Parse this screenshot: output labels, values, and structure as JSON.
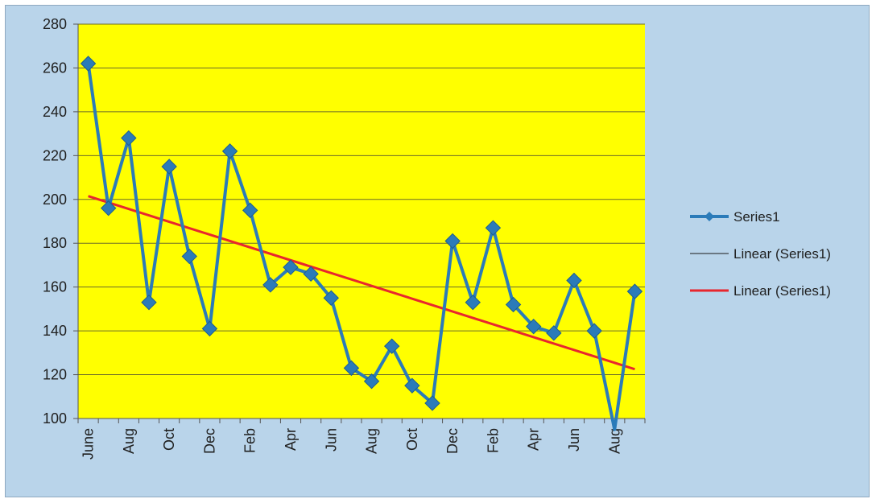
{
  "chart_data": {
    "type": "line",
    "title": "",
    "xlabel": "",
    "ylabel": "",
    "ylim": [
      100,
      280
    ],
    "yticks": [
      100,
      120,
      140,
      160,
      180,
      200,
      220,
      240,
      260,
      280
    ],
    "x_tick_labels": [
      "June",
      "Aug",
      "Oct",
      "Dec",
      "Feb",
      "Apr",
      "Jun",
      "Aug",
      "Oct",
      "Dec",
      "Feb",
      "Apr",
      "Jun",
      "Aug"
    ],
    "grid": true,
    "legend_position": "right",
    "series": [
      {
        "name": "Series1",
        "color": "#2b7bb9",
        "values": [
          262,
          196,
          228,
          153,
          215,
          174,
          141,
          222,
          195,
          161,
          169,
          166,
          155,
          123,
          117,
          133,
          115,
          107,
          181,
          153,
          187,
          152,
          142,
          139,
          163,
          140,
          95,
          158
        ]
      }
    ],
    "trendlines": [
      {
        "name": "Linear (Series1)",
        "color": "#1a1a1a",
        "start": 201.5,
        "end": 122.5
      },
      {
        "name": "Linear (Series1)",
        "color": "#e8262e",
        "start": 201.5,
        "end": 122.5
      }
    ],
    "colors": {
      "plot_background": "#ffff00",
      "chart_background": "#b9d4ea"
    }
  }
}
